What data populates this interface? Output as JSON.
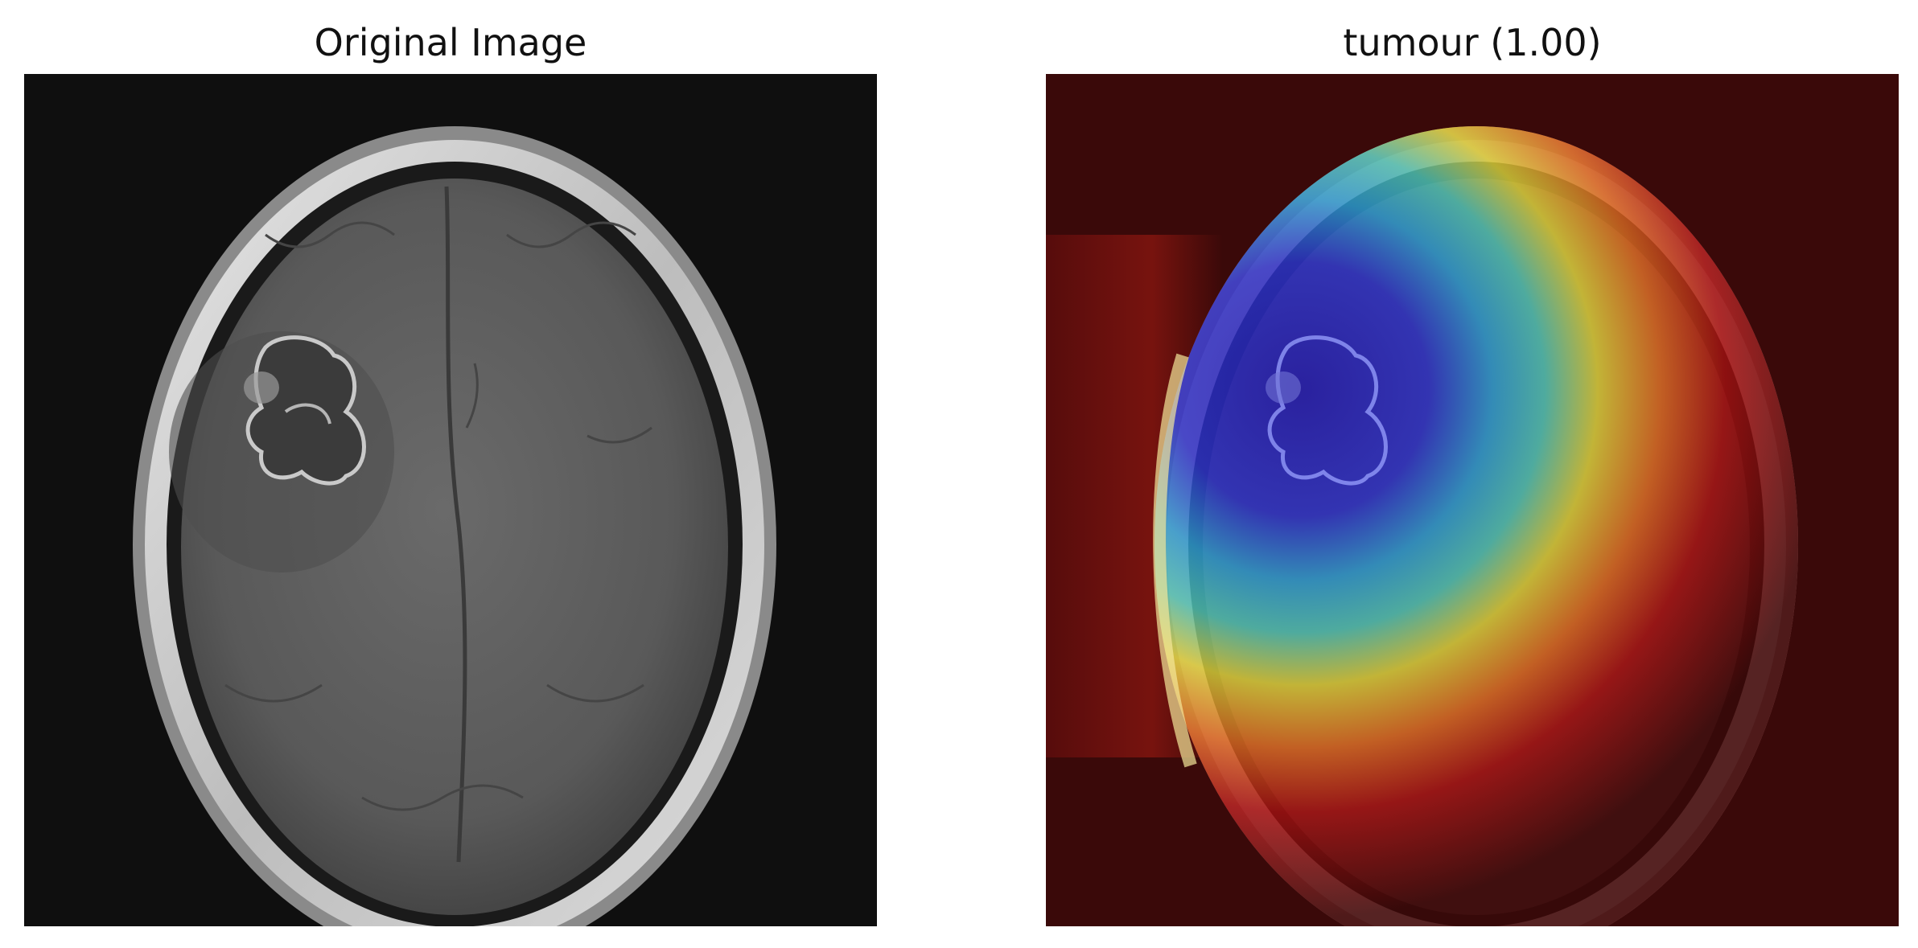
{
  "figure": {
    "left_panel": {
      "title": "Original Image",
      "background_color": "#0f0f0f"
    },
    "right_panel": {
      "title": "tumour (1.00)",
      "background_color": "#3a0909",
      "colormap": "jet",
      "overlay": "heatmap"
    },
    "colors": {
      "skull_light": "#d9d9d9",
      "brain_gray": "#5b5b5b",
      "heat_red": "#a31010",
      "heat_yellow": "#e8d23a",
      "heat_cyan": "#35c0c8",
      "heat_blue": "#2525c8"
    }
  }
}
